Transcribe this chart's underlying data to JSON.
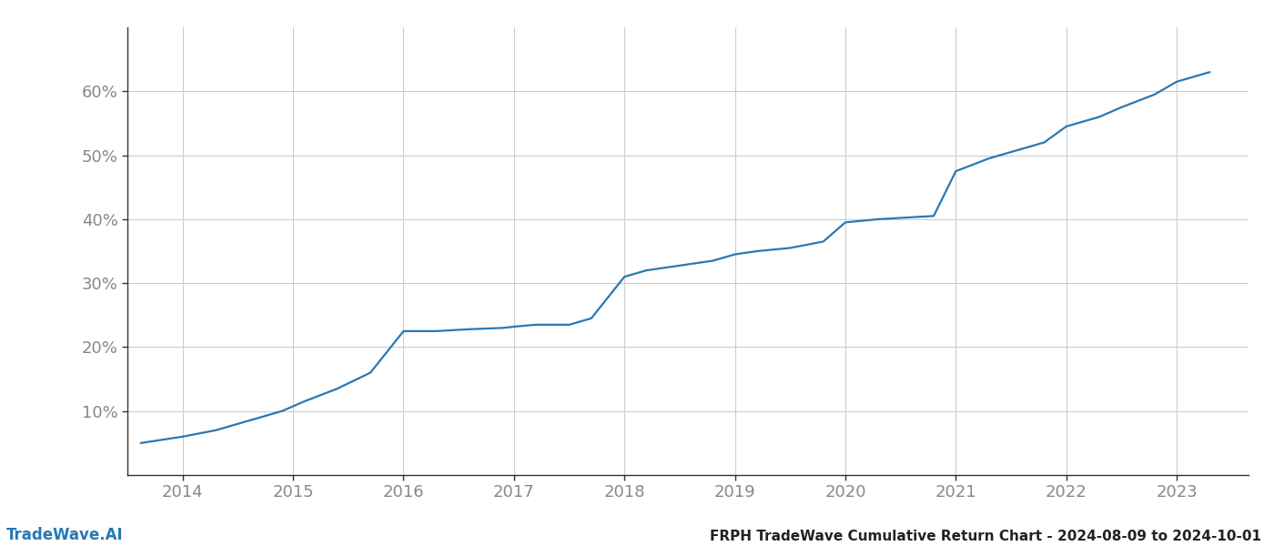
{
  "title": "FRPH TradeWave Cumulative Return Chart - 2024-08-09 to 2024-10-01",
  "watermark": "TradeWave.AI",
  "line_color": "#2878b5",
  "background_color": "#ffffff",
  "grid_color": "#cccccc",
  "x_years": [
    2014,
    2015,
    2016,
    2017,
    2018,
    2019,
    2020,
    2021,
    2022,
    2023
  ],
  "x_data": [
    2013.62,
    2014.0,
    2014.3,
    2014.6,
    2014.9,
    2015.1,
    2015.4,
    2015.7,
    2016.0,
    2016.3,
    2016.6,
    2016.9,
    2017.0,
    2017.2,
    2017.5,
    2017.7,
    2018.0,
    2018.2,
    2018.4,
    2018.6,
    2018.8,
    2019.0,
    2019.2,
    2019.5,
    2019.8,
    2020.0,
    2020.3,
    2020.5,
    2020.8,
    2021.0,
    2021.3,
    2021.5,
    2021.8,
    2022.0,
    2022.3,
    2022.5,
    2022.8,
    2023.0,
    2023.3
  ],
  "y_data": [
    5.0,
    6.0,
    7.0,
    8.5,
    10.0,
    11.5,
    13.5,
    16.0,
    22.5,
    22.5,
    22.8,
    23.0,
    23.2,
    23.5,
    23.5,
    24.5,
    31.0,
    32.0,
    32.5,
    33.0,
    33.5,
    34.5,
    35.0,
    35.5,
    36.5,
    39.5,
    40.0,
    40.2,
    40.5,
    47.5,
    49.5,
    50.5,
    52.0,
    54.5,
    56.0,
    57.5,
    59.5,
    61.5,
    63.0
  ],
  "ylim": [
    0,
    70
  ],
  "xlim": [
    2013.5,
    2023.65
  ],
  "yticks": [
    10,
    20,
    30,
    40,
    50,
    60
  ],
  "line_width": 1.6,
  "tick_color": "#888888",
  "tick_fontsize": 13,
  "title_fontsize": 11,
  "watermark_fontsize": 12,
  "spine_color": "#333333"
}
